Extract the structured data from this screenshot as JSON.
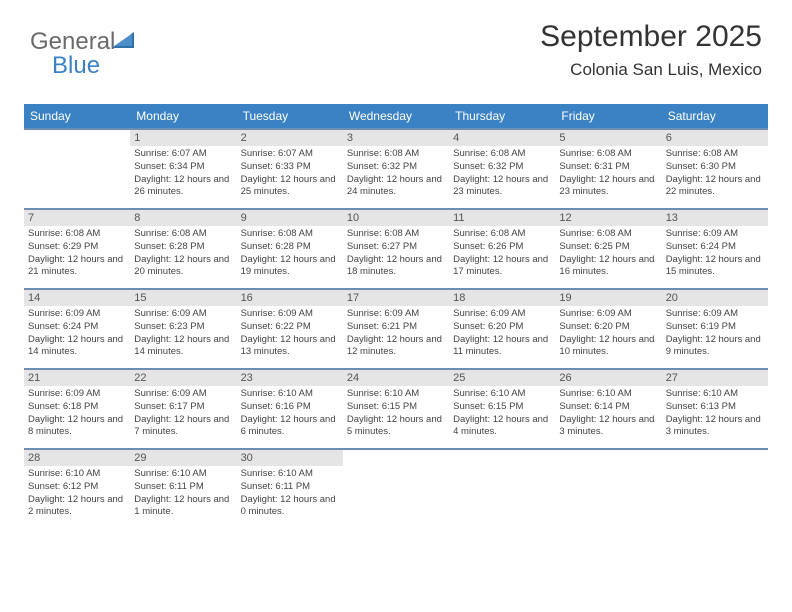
{
  "logo": {
    "line1": "General",
    "line2": "Blue"
  },
  "title": "September 2025",
  "location": "Colonia San Luis, Mexico",
  "colors": {
    "header_bg": "#3b82c4",
    "header_text": "#ffffff",
    "daynum_bg": "#e5e5e5",
    "week_border": "#6a8fb0",
    "logo_gray": "#6b6b6b",
    "logo_blue": "#3b82c4",
    "text": "#444444"
  },
  "day_names": [
    "Sunday",
    "Monday",
    "Tuesday",
    "Wednesday",
    "Thursday",
    "Friday",
    "Saturday"
  ],
  "weeks": [
    [
      {
        "day": "",
        "sunrise": "",
        "sunset": "",
        "daylight": ""
      },
      {
        "day": "1",
        "sunrise": "Sunrise: 6:07 AM",
        "sunset": "Sunset: 6:34 PM",
        "daylight": "Daylight: 12 hours and 26 minutes."
      },
      {
        "day": "2",
        "sunrise": "Sunrise: 6:07 AM",
        "sunset": "Sunset: 6:33 PM",
        "daylight": "Daylight: 12 hours and 25 minutes."
      },
      {
        "day": "3",
        "sunrise": "Sunrise: 6:08 AM",
        "sunset": "Sunset: 6:32 PM",
        "daylight": "Daylight: 12 hours and 24 minutes."
      },
      {
        "day": "4",
        "sunrise": "Sunrise: 6:08 AM",
        "sunset": "Sunset: 6:32 PM",
        "daylight": "Daylight: 12 hours and 23 minutes."
      },
      {
        "day": "5",
        "sunrise": "Sunrise: 6:08 AM",
        "sunset": "Sunset: 6:31 PM",
        "daylight": "Daylight: 12 hours and 23 minutes."
      },
      {
        "day": "6",
        "sunrise": "Sunrise: 6:08 AM",
        "sunset": "Sunset: 6:30 PM",
        "daylight": "Daylight: 12 hours and 22 minutes."
      }
    ],
    [
      {
        "day": "7",
        "sunrise": "Sunrise: 6:08 AM",
        "sunset": "Sunset: 6:29 PM",
        "daylight": "Daylight: 12 hours and 21 minutes."
      },
      {
        "day": "8",
        "sunrise": "Sunrise: 6:08 AM",
        "sunset": "Sunset: 6:28 PM",
        "daylight": "Daylight: 12 hours and 20 minutes."
      },
      {
        "day": "9",
        "sunrise": "Sunrise: 6:08 AM",
        "sunset": "Sunset: 6:28 PM",
        "daylight": "Daylight: 12 hours and 19 minutes."
      },
      {
        "day": "10",
        "sunrise": "Sunrise: 6:08 AM",
        "sunset": "Sunset: 6:27 PM",
        "daylight": "Daylight: 12 hours and 18 minutes."
      },
      {
        "day": "11",
        "sunrise": "Sunrise: 6:08 AM",
        "sunset": "Sunset: 6:26 PM",
        "daylight": "Daylight: 12 hours and 17 minutes."
      },
      {
        "day": "12",
        "sunrise": "Sunrise: 6:08 AM",
        "sunset": "Sunset: 6:25 PM",
        "daylight": "Daylight: 12 hours and 16 minutes."
      },
      {
        "day": "13",
        "sunrise": "Sunrise: 6:09 AM",
        "sunset": "Sunset: 6:24 PM",
        "daylight": "Daylight: 12 hours and 15 minutes."
      }
    ],
    [
      {
        "day": "14",
        "sunrise": "Sunrise: 6:09 AM",
        "sunset": "Sunset: 6:24 PM",
        "daylight": "Daylight: 12 hours and 14 minutes."
      },
      {
        "day": "15",
        "sunrise": "Sunrise: 6:09 AM",
        "sunset": "Sunset: 6:23 PM",
        "daylight": "Daylight: 12 hours and 14 minutes."
      },
      {
        "day": "16",
        "sunrise": "Sunrise: 6:09 AM",
        "sunset": "Sunset: 6:22 PM",
        "daylight": "Daylight: 12 hours and 13 minutes."
      },
      {
        "day": "17",
        "sunrise": "Sunrise: 6:09 AM",
        "sunset": "Sunset: 6:21 PM",
        "daylight": "Daylight: 12 hours and 12 minutes."
      },
      {
        "day": "18",
        "sunrise": "Sunrise: 6:09 AM",
        "sunset": "Sunset: 6:20 PM",
        "daylight": "Daylight: 12 hours and 11 minutes."
      },
      {
        "day": "19",
        "sunrise": "Sunrise: 6:09 AM",
        "sunset": "Sunset: 6:20 PM",
        "daylight": "Daylight: 12 hours and 10 minutes."
      },
      {
        "day": "20",
        "sunrise": "Sunrise: 6:09 AM",
        "sunset": "Sunset: 6:19 PM",
        "daylight": "Daylight: 12 hours and 9 minutes."
      }
    ],
    [
      {
        "day": "21",
        "sunrise": "Sunrise: 6:09 AM",
        "sunset": "Sunset: 6:18 PM",
        "daylight": "Daylight: 12 hours and 8 minutes."
      },
      {
        "day": "22",
        "sunrise": "Sunrise: 6:09 AM",
        "sunset": "Sunset: 6:17 PM",
        "daylight": "Daylight: 12 hours and 7 minutes."
      },
      {
        "day": "23",
        "sunrise": "Sunrise: 6:10 AM",
        "sunset": "Sunset: 6:16 PM",
        "daylight": "Daylight: 12 hours and 6 minutes."
      },
      {
        "day": "24",
        "sunrise": "Sunrise: 6:10 AM",
        "sunset": "Sunset: 6:15 PM",
        "daylight": "Daylight: 12 hours and 5 minutes."
      },
      {
        "day": "25",
        "sunrise": "Sunrise: 6:10 AM",
        "sunset": "Sunset: 6:15 PM",
        "daylight": "Daylight: 12 hours and 4 minutes."
      },
      {
        "day": "26",
        "sunrise": "Sunrise: 6:10 AM",
        "sunset": "Sunset: 6:14 PM",
        "daylight": "Daylight: 12 hours and 3 minutes."
      },
      {
        "day": "27",
        "sunrise": "Sunrise: 6:10 AM",
        "sunset": "Sunset: 6:13 PM",
        "daylight": "Daylight: 12 hours and 3 minutes."
      }
    ],
    [
      {
        "day": "28",
        "sunrise": "Sunrise: 6:10 AM",
        "sunset": "Sunset: 6:12 PM",
        "daylight": "Daylight: 12 hours and 2 minutes."
      },
      {
        "day": "29",
        "sunrise": "Sunrise: 6:10 AM",
        "sunset": "Sunset: 6:11 PM",
        "daylight": "Daylight: 12 hours and 1 minute."
      },
      {
        "day": "30",
        "sunrise": "Sunrise: 6:10 AM",
        "sunset": "Sunset: 6:11 PM",
        "daylight": "Daylight: 12 hours and 0 minutes."
      },
      {
        "day": "",
        "sunrise": "",
        "sunset": "",
        "daylight": ""
      },
      {
        "day": "",
        "sunrise": "",
        "sunset": "",
        "daylight": ""
      },
      {
        "day": "",
        "sunrise": "",
        "sunset": "",
        "daylight": ""
      },
      {
        "day": "",
        "sunrise": "",
        "sunset": "",
        "daylight": ""
      }
    ]
  ]
}
